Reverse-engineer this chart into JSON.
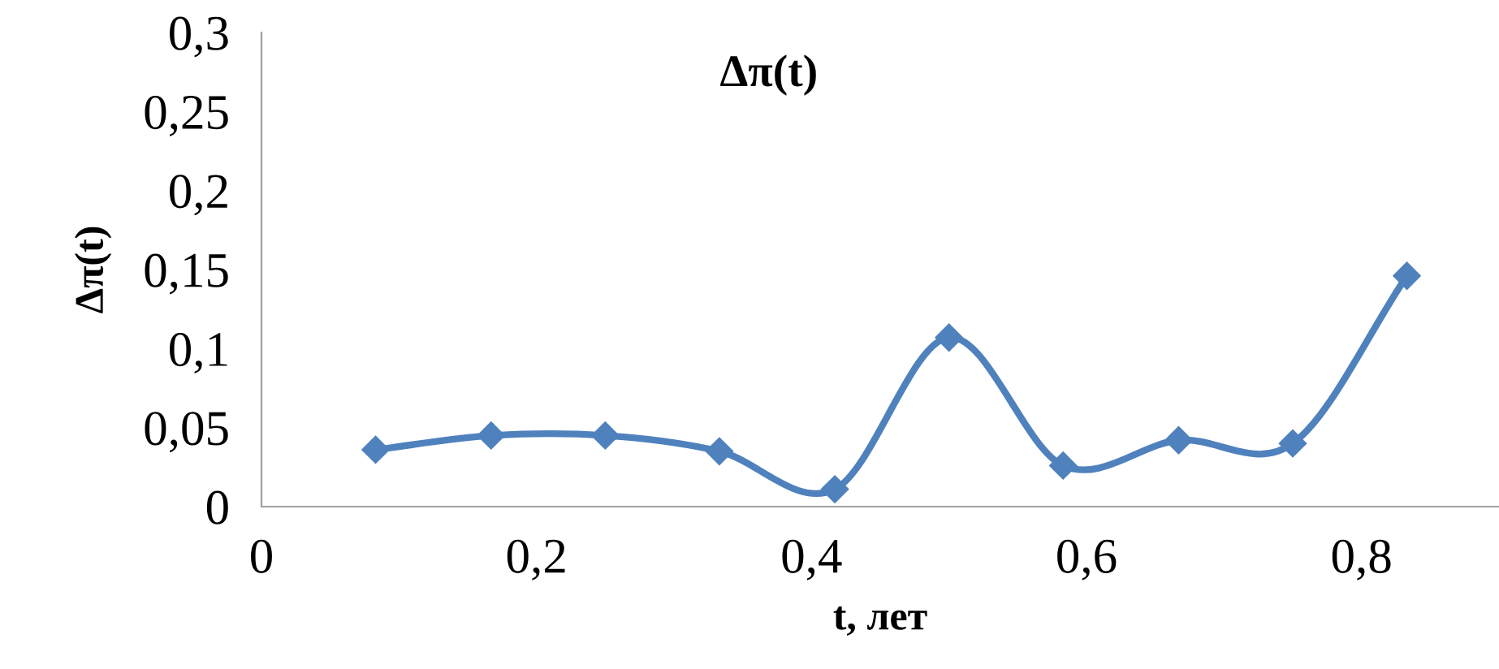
{
  "chart_data": {
    "type": "line",
    "title": "Δπ(t)",
    "xlabel": "t, лет",
    "ylabel": "Δπ(t)",
    "series": [
      {
        "color": "#4f81bd",
        "x": [
          0.083,
          0.167,
          0.25,
          0.333,
          0.417,
          0.5,
          0.583,
          0.667,
          0.75,
          0.833
        ],
        "values": [
          0.036,
          0.045,
          0.045,
          0.035,
          0.011,
          0.107,
          0.026,
          0.042,
          0.04,
          0.146
        ]
      }
    ],
    "xlim": [
      0,
      0.9
    ],
    "xticks": [
      {
        "value": 0,
        "label": "0"
      },
      {
        "value": 0.2,
        "label": "0,2"
      },
      {
        "value": 0.4,
        "label": "0,4"
      },
      {
        "value": 0.6,
        "label": "0,6"
      },
      {
        "value": 0.8,
        "label": "0,8"
      }
    ],
    "ylim": [
      0,
      0.3
    ],
    "yticks": [
      {
        "value": 0,
        "label": "0"
      },
      {
        "value": 0.05,
        "label": "0,05"
      },
      {
        "value": 0.1,
        "label": "0,1"
      },
      {
        "value": 0.15,
        "label": "0,15"
      },
      {
        "value": 0.2,
        "label": "0,2"
      },
      {
        "value": 0.25,
        "label": "0,25"
      },
      {
        "value": 0.3,
        "label": "0,3"
      }
    ],
    "grid": false,
    "legend": false,
    "marker": "diamond",
    "line_style": "solid"
  }
}
